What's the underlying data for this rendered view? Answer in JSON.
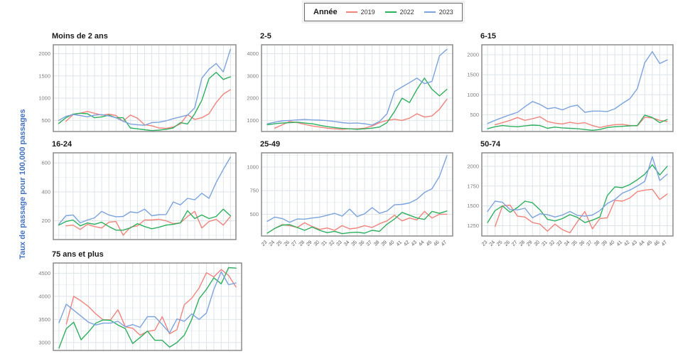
{
  "legend": {
    "title": "Année",
    "items": [
      {
        "label": "2019",
        "color": "#F2837B"
      },
      {
        "label": "2022",
        "color": "#2DB05D"
      },
      {
        "label": "2023",
        "color": "#7CA3DE"
      }
    ]
  },
  "y_axis_label": "Taux de passage pour 100,000 passages",
  "colors": {
    "grid": "#dde4ea",
    "grid_minor": "#eef2f5",
    "panel_border": "#8c8c8c",
    "tick_text": "#7f7f7f",
    "x_tick_text": "#595959"
  },
  "chart_data": [
    {
      "type": "line",
      "title": "Moins de 2 ans",
      "x": [
        "23",
        "24",
        "25",
        "26",
        "27",
        "28",
        "29",
        "30",
        "31",
        "32",
        "33",
        "34",
        "35",
        "36",
        "37",
        "38",
        "39",
        "40",
        "41",
        "42",
        "43",
        "44",
        "45",
        "46",
        "47"
      ],
      "ylim": [
        250,
        2200
      ],
      "yticks": [
        500,
        1000,
        1500,
        2000
      ],
      "show_x_labels": false,
      "series": [
        {
          "name": "2019",
          "color": "#F2837B",
          "values": [
            null,
            480,
            630,
            660,
            700,
            660,
            620,
            640,
            610,
            480,
            620,
            550,
            400,
            380,
            330,
            320,
            350,
            420,
            630,
            520,
            560,
            650,
            900,
            1090,
            1190
          ]
        },
        {
          "name": "2022",
          "color": "#2DB05D",
          "values": [
            430,
            560,
            640,
            660,
            650,
            560,
            580,
            620,
            560,
            560,
            330,
            310,
            290,
            270,
            280,
            300,
            330,
            450,
            420,
            650,
            950,
            1440,
            1580,
            1420,
            1480
          ]
        },
        {
          "name": "2023",
          "color": "#7CA3DE",
          "values": [
            500,
            590,
            630,
            610,
            580,
            620,
            630,
            600,
            560,
            480,
            420,
            400,
            390,
            450,
            460,
            490,
            540,
            580,
            620,
            780,
            1450,
            1650,
            1780,
            1590,
            2100
          ]
        }
      ]
    },
    {
      "type": "line",
      "title": "2-5",
      "x": [
        "23",
        "24",
        "25",
        "26",
        "27",
        "28",
        "29",
        "30",
        "31",
        "32",
        "33",
        "34",
        "35",
        "36",
        "37",
        "38",
        "39",
        "40",
        "41",
        "42",
        "43",
        "44",
        "45",
        "46",
        "47"
      ],
      "ylim": [
        500,
        4400
      ],
      "yticks": [
        1000,
        2000,
        3000,
        4000
      ],
      "show_x_labels": false,
      "series": [
        {
          "name": "2019",
          "color": "#F2837B",
          "values": [
            null,
            650,
            800,
            950,
            900,
            820,
            750,
            700,
            650,
            620,
            600,
            620,
            620,
            650,
            750,
            900,
            1000,
            1050,
            1000,
            1100,
            1300,
            1150,
            1200,
            1500,
            1950
          ]
        },
        {
          "name": "2022",
          "color": "#2DB05D",
          "values": [
            800,
            850,
            880,
            900,
            920,
            880,
            850,
            780,
            720,
            680,
            640,
            620,
            600,
            620,
            650,
            700,
            900,
            1400,
            2000,
            1800,
            2400,
            2900,
            2400,
            2100,
            2400
          ]
        },
        {
          "name": "2023",
          "color": "#7CA3DE",
          "values": [
            850,
            920,
            980,
            1000,
            1020,
            1040,
            1020,
            1010,
            990,
            950,
            900,
            870,
            880,
            850,
            790,
            950,
            1300,
            2300,
            2500,
            2700,
            2900,
            2650,
            2750,
            3900,
            4200
          ]
        }
      ]
    },
    {
      "type": "line",
      "title": "6-15",
      "x": [
        "23",
        "24",
        "25",
        "26",
        "27",
        "28",
        "29",
        "30",
        "31",
        "32",
        "33",
        "34",
        "35",
        "36",
        "37",
        "38",
        "39",
        "40",
        "41",
        "42",
        "43",
        "44",
        "45",
        "46",
        "47"
      ],
      "ylim": [
        80,
        2250
      ],
      "yticks": [
        500,
        1000,
        1500,
        2000
      ],
      "show_x_labels": false,
      "series": [
        {
          "name": "2019",
          "color": "#F2837B",
          "values": [
            null,
            250,
            300,
            360,
            430,
            360,
            400,
            450,
            330,
            290,
            270,
            310,
            280,
            300,
            230,
            180,
            220,
            250,
            260,
            230,
            220,
            440,
            420,
            360,
            330
          ]
        },
        {
          "name": "2022",
          "color": "#2DB05D",
          "values": [
            150,
            200,
            230,
            210,
            200,
            220,
            240,
            230,
            160,
            190,
            170,
            160,
            150,
            130,
            110,
            130,
            180,
            200,
            210,
            220,
            230,
            490,
            430,
            300,
            380
          ]
        },
        {
          "name": "2023",
          "color": "#7CA3DE",
          "values": [
            280,
            360,
            430,
            500,
            560,
            700,
            830,
            760,
            650,
            680,
            620,
            700,
            740,
            560,
            590,
            590,
            580,
            650,
            780,
            900,
            1150,
            1800,
            2080,
            1780,
            1870
          ]
        }
      ]
    },
    {
      "type": "line",
      "title": "16-24",
      "x": [
        "23",
        "24",
        "25",
        "26",
        "27",
        "28",
        "29",
        "30",
        "31",
        "32",
        "33",
        "34",
        "35",
        "36",
        "37",
        "38",
        "39",
        "40",
        "41",
        "42",
        "43",
        "44",
        "45",
        "46",
        "47"
      ],
      "ylim": [
        70,
        670
      ],
      "yticks": [
        200,
        400,
        600
      ],
      "show_x_labels": false,
      "series": [
        {
          "name": "2019",
          "color": "#F2837B",
          "values": [
            null,
            165,
            170,
            140,
            175,
            160,
            150,
            190,
            195,
            100,
            155,
            165,
            205,
            205,
            210,
            200,
            180,
            185,
            230,
            265,
            150,
            195,
            210,
            170,
            230
          ]
        },
        {
          "name": "2022",
          "color": "#2DB05D",
          "values": [
            170,
            195,
            205,
            165,
            185,
            175,
            190,
            160,
            135,
            135,
            150,
            180,
            160,
            145,
            155,
            170,
            175,
            185,
            270,
            215,
            240,
            215,
            230,
            280,
            235
          ]
        },
        {
          "name": "2023",
          "color": "#7CA3DE",
          "values": [
            175,
            235,
            240,
            185,
            205,
            220,
            265,
            240,
            228,
            230,
            262,
            255,
            280,
            235,
            242,
            243,
            330,
            310,
            355,
            345,
            390,
            355,
            465,
            555,
            640
          ]
        }
      ]
    },
    {
      "type": "line",
      "title": "25-49",
      "x": [
        "23",
        "24",
        "25",
        "26",
        "27",
        "28",
        "29",
        "30",
        "31",
        "32",
        "33",
        "34",
        "35",
        "36",
        "37",
        "38",
        "39",
        "40",
        "41",
        "42",
        "43",
        "44",
        "45",
        "46",
        "47"
      ],
      "ylim": [
        270,
        1150
      ],
      "yticks": [
        500,
        750,
        1000
      ],
      "show_x_labels": true,
      "series": [
        {
          "name": "2019",
          "color": "#F2837B",
          "values": [
            null,
            350,
            390,
            380,
            360,
            410,
            370,
            340,
            355,
            330,
            380,
            345,
            355,
            380,
            360,
            400,
            430,
            490,
            430,
            460,
            440,
            530,
            460,
            500,
            500
          ]
        },
        {
          "name": "2022",
          "color": "#2DB05D",
          "values": [
            300,
            350,
            385,
            390,
            360,
            330,
            365,
            330,
            305,
            320,
            295,
            305,
            310,
            300,
            330,
            320,
            395,
            450,
            520,
            490,
            460,
            445,
            530,
            510,
            535
          ]
        },
        {
          "name": "2023",
          "color": "#7CA3DE",
          "values": [
            425,
            470,
            455,
            415,
            450,
            448,
            460,
            470,
            490,
            510,
            480,
            555,
            475,
            505,
            570,
            510,
            535,
            600,
            605,
            620,
            660,
            730,
            770,
            900,
            1120
          ]
        }
      ]
    },
    {
      "type": "line",
      "title": "50-74",
      "x": [
        "23",
        "24",
        "25",
        "26",
        "27",
        "28",
        "29",
        "30",
        "31",
        "32",
        "33",
        "34",
        "35",
        "36",
        "37",
        "38",
        "39",
        "40",
        "41",
        "42",
        "43",
        "44",
        "45",
        "46",
        "47"
      ],
      "ylim": [
        1120,
        2170
      ],
      "yticks": [
        1250,
        1500,
        1750,
        2000
      ],
      "show_x_labels": true,
      "series": [
        {
          "name": "2019",
          "color": "#F2837B",
          "values": [
            null,
            1240,
            1500,
            1510,
            1370,
            1360,
            1290,
            1270,
            1180,
            1270,
            1200,
            1160,
            1300,
            1430,
            1210,
            1340,
            1350,
            1570,
            1560,
            1600,
            1680,
            1700,
            1710,
            1580,
            1650
          ]
        },
        {
          "name": "2022",
          "color": "#2DB05D",
          "values": [
            1290,
            1440,
            1500,
            1420,
            1480,
            1560,
            1540,
            1450,
            1330,
            1310,
            1340,
            1390,
            1355,
            1290,
            1320,
            1360,
            1630,
            1740,
            1730,
            1770,
            1830,
            1900,
            2020,
            1890,
            2000
          ]
        },
        {
          "name": "2023",
          "color": "#7CA3DE",
          "values": [
            1430,
            1560,
            1545,
            1455,
            1450,
            1470,
            1350,
            1400,
            1390,
            1360,
            1385,
            1430,
            1380,
            1370,
            1385,
            1440,
            1530,
            1580,
            1660,
            1700,
            1750,
            1810,
            2120,
            1820,
            1900
          ]
        }
      ]
    },
    {
      "type": "line",
      "title": "75 ans et plus",
      "x": [
        "23",
        "24",
        "25",
        "26",
        "27",
        "28",
        "29",
        "30",
        "31",
        "32",
        "33",
        "34",
        "35",
        "36",
        "37",
        "38",
        "39",
        "40",
        "41",
        "42",
        "43",
        "44",
        "45",
        "46",
        "47"
      ],
      "ylim": [
        2830,
        4720
      ],
      "yticks": [
        3000,
        3500,
        4000,
        4500
      ],
      "show_x_labels": false,
      "series": [
        {
          "name": "2019",
          "color": "#F2837B",
          "values": [
            null,
            3400,
            4000,
            3900,
            3780,
            3620,
            3490,
            3490,
            3710,
            3340,
            3310,
            3160,
            3240,
            3270,
            3560,
            3190,
            3280,
            3820,
            3960,
            4180,
            4510,
            4420,
            4580,
            4450,
            4200
          ]
        },
        {
          "name": "2022",
          "color": "#2DB05D",
          "values": [
            2880,
            3300,
            3440,
            3060,
            3230,
            3420,
            3490,
            3480,
            3380,
            3300,
            2980,
            3110,
            3250,
            3050,
            3050,
            2900,
            3000,
            3160,
            3500,
            3950,
            4150,
            4400,
            4270,
            4620,
            4610
          ]
        },
        {
          "name": "2023",
          "color": "#7CA3DE",
          "values": [
            3430,
            3830,
            3700,
            3570,
            3440,
            3380,
            3420,
            3420,
            3460,
            3340,
            3390,
            3330,
            3560,
            3560,
            3390,
            3210,
            3510,
            3460,
            3620,
            3500,
            3640,
            4150,
            4530,
            4250,
            4290
          ]
        }
      ]
    }
  ]
}
